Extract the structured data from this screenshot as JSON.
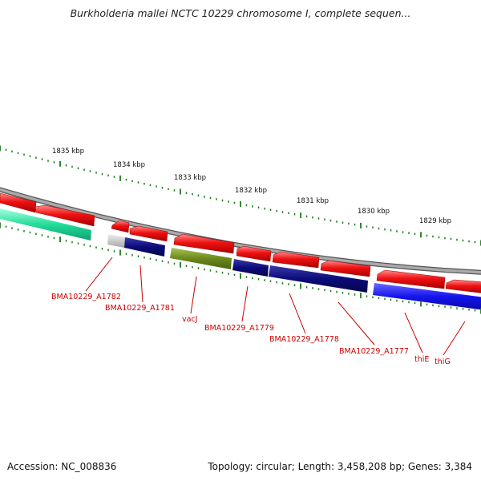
{
  "title": "Burkholderia mallei NCTC 10229 chromosome I, complete sequen...",
  "footer": {
    "accession": "Accession: NC_008836",
    "summary": "Topology: circular; Length: 3,458,208 bp; Genes: 3,384"
  },
  "ticks": [
    "1835 kbp",
    "1834 kbp",
    "1833 kbp",
    "1832 kbp",
    "1831 kbp",
    "1830 kbp",
    "1829 kbp"
  ],
  "colors": {
    "backbone": "#8a8a8a",
    "forward_gene": "#ee1111",
    "tick": "#1a7a1a",
    "label": "#cc0000",
    "navy": "#0b0b7a",
    "olive": "#6b8a1c",
    "blue": "#1414ee",
    "teal": "#22dd99",
    "grey": "#bbbbbb"
  },
  "gene_labels": [
    "BMA10229_A1782",
    "BMA10229_A1781",
    "vacJ",
    "BMA10229_A1779",
    "BMA10229_A1778",
    "BMA10229_A1777",
    "thiE",
    "thiG"
  ]
}
